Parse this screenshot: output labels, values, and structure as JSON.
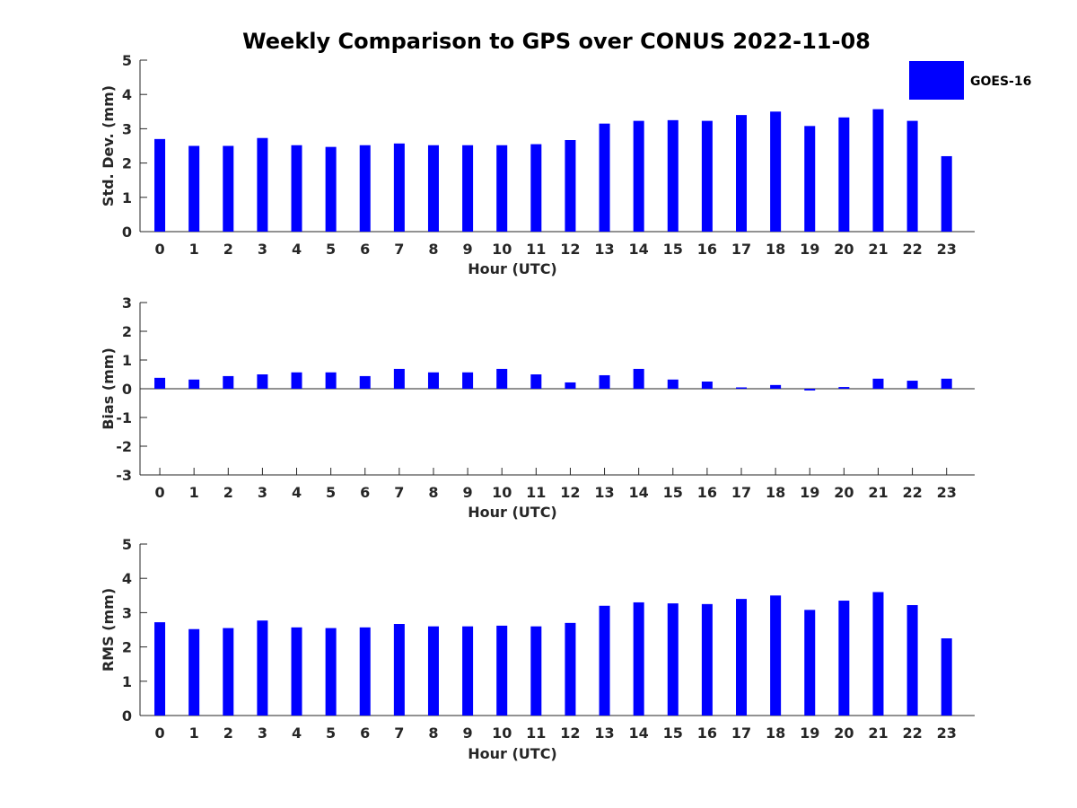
{
  "figure_title": "Weekly Comparison to GPS over CONUS 2022-11-08",
  "bar_color": "#0000ff",
  "legend": {
    "series": "GOES-16"
  },
  "chart_data": [
    {
      "type": "bar",
      "title": "Weekly Comparison to GPS over CONUS 2022-11-08",
      "xlabel": "Hour (UTC)",
      "ylabel": "Std. Dev. (mm)",
      "ylim": [
        0,
        5
      ],
      "yticks": [
        "0",
        "1",
        "2",
        "3",
        "4",
        "5"
      ],
      "categories": [
        "0",
        "1",
        "2",
        "3",
        "4",
        "5",
        "6",
        "7",
        "8",
        "9",
        "10",
        "11",
        "12",
        "13",
        "14",
        "15",
        "16",
        "17",
        "18",
        "19",
        "20",
        "21",
        "22",
        "23"
      ],
      "series": [
        {
          "name": "GOES-16",
          "values": [
            2.7,
            2.5,
            2.5,
            2.73,
            2.52,
            2.47,
            2.52,
            2.57,
            2.52,
            2.52,
            2.52,
            2.55,
            2.67,
            3.15,
            3.23,
            3.25,
            3.23,
            3.4,
            3.5,
            3.08,
            3.33,
            3.57,
            3.23,
            2.2
          ]
        }
      ]
    },
    {
      "type": "bar",
      "xlabel": "Hour (UTC)",
      "ylabel": "Bias (mm)",
      "ylim": [
        -3,
        3
      ],
      "yticks": [
        "-3",
        "-2",
        "-1",
        "0",
        "1",
        "2",
        "3"
      ],
      "categories": [
        "0",
        "1",
        "2",
        "3",
        "4",
        "5",
        "6",
        "7",
        "8",
        "9",
        "10",
        "11",
        "12",
        "13",
        "14",
        "15",
        "16",
        "17",
        "18",
        "19",
        "20",
        "21",
        "22",
        "23"
      ],
      "series": [
        {
          "name": "GOES-16",
          "values": [
            0.38,
            0.32,
            0.44,
            0.5,
            0.57,
            0.57,
            0.44,
            0.69,
            0.57,
            0.57,
            0.69,
            0.5,
            0.22,
            0.47,
            0.69,
            0.32,
            0.25,
            0.02,
            0.13,
            -0.06,
            0.06,
            0.35,
            0.28,
            0.35
          ]
        }
      ]
    },
    {
      "type": "bar",
      "xlabel": "Hour (UTC)",
      "ylabel": "RMS (mm)",
      "ylim": [
        0,
        5
      ],
      "yticks": [
        "0",
        "1",
        "2",
        "3",
        "4",
        "5"
      ],
      "categories": [
        "0",
        "1",
        "2",
        "3",
        "4",
        "5",
        "6",
        "7",
        "8",
        "9",
        "10",
        "11",
        "12",
        "13",
        "14",
        "15",
        "16",
        "17",
        "18",
        "19",
        "20",
        "21",
        "22",
        "23"
      ],
      "series": [
        {
          "name": "GOES-16",
          "values": [
            2.72,
            2.52,
            2.55,
            2.77,
            2.57,
            2.55,
            2.57,
            2.67,
            2.6,
            2.6,
            2.62,
            2.6,
            2.7,
            3.2,
            3.3,
            3.27,
            3.25,
            3.4,
            3.5,
            3.08,
            3.35,
            3.6,
            3.22,
            2.25
          ]
        }
      ]
    }
  ]
}
